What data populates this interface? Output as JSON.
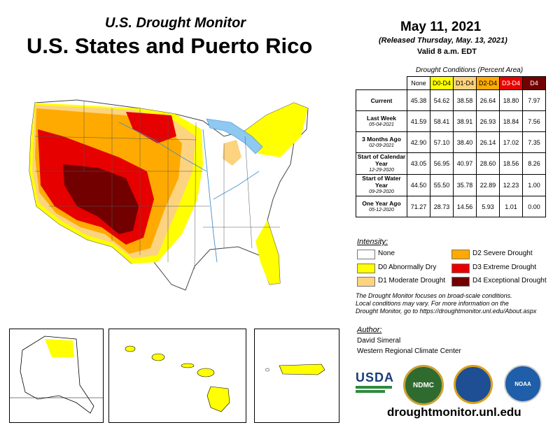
{
  "title": {
    "subtitle": "U.S. Drought Monitor",
    "main": "U.S. States and Puerto Rico"
  },
  "date": {
    "date": "May 11, 2021",
    "released": "(Released Thursday, May. 13, 2021)",
    "valid": "Valid 8 a.m. EDT"
  },
  "table": {
    "caption": "Drought Conditions (Percent Area)",
    "headers": [
      "None",
      "D0-D4",
      "D1-D4",
      "D2-D4",
      "D3-D4",
      "D4"
    ],
    "header_colors": [
      "#ffffff",
      "#ffff00",
      "#fcd37f",
      "#ffaa00",
      "#e60000",
      "#730000"
    ],
    "rows": [
      {
        "label": "Current",
        "sub": "",
        "values": [
          "45.38",
          "54.62",
          "38.58",
          "26.64",
          "18.80",
          "7.97"
        ]
      },
      {
        "label": "Last Week",
        "sub": "05-04-2021",
        "values": [
          "41.59",
          "58.41",
          "38.91",
          "26.93",
          "18.84",
          "7.56"
        ]
      },
      {
        "label": "3 Months Ago",
        "sub": "02-09-2021",
        "values": [
          "42.90",
          "57.10",
          "38.40",
          "26.14",
          "17.02",
          "7.35"
        ]
      },
      {
        "label": "Start of Calendar Year",
        "sub": "12-29-2020",
        "values": [
          "43.05",
          "56.95",
          "40.97",
          "28.60",
          "18.56",
          "8.26"
        ]
      },
      {
        "label": "Start of Water Year",
        "sub": "09-29-2020",
        "values": [
          "44.50",
          "55.50",
          "35.78",
          "22.89",
          "12.23",
          "1.00"
        ]
      },
      {
        "label": "One Year Ago",
        "sub": "05-12-2020",
        "values": [
          "71.27",
          "28.73",
          "14.56",
          "5.93",
          "1.01",
          "0.00"
        ]
      }
    ]
  },
  "legend": {
    "title": "Intensity:",
    "items": [
      {
        "label": "None",
        "color": "#ffffff"
      },
      {
        "label": "D0 Abnormally Dry",
        "color": "#ffff00"
      },
      {
        "label": "D1 Moderate Drought",
        "color": "#fcd37f"
      },
      {
        "label": "D2 Severe Drought",
        "color": "#ffaa00"
      },
      {
        "label": "D3 Extreme Drought",
        "color": "#e60000"
      },
      {
        "label": "D4 Exceptional Drought",
        "color": "#730000"
      }
    ]
  },
  "note": {
    "line1": "The Drought Monitor focuses on broad-scale conditions.",
    "line2": "Local conditions may vary. For more information on the",
    "line3": "Drought Monitor, go to https://droughtmonitor.unl.edu/About.aspx"
  },
  "author": {
    "heading": "Author:",
    "name": "David Simeral",
    "org": "Western Regional Climate Center"
  },
  "logos": {
    "usda": "USDA",
    "ndmc": "NDMC",
    "noaa": "NOAA"
  },
  "footer_url": "droughtmonitor.unl.edu"
}
